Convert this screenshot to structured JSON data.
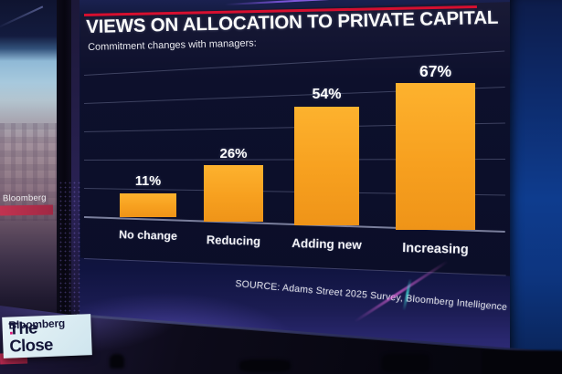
{
  "chart_data": {
    "type": "bar",
    "title": "VIEWS ON ALLOCATION TO PRIVATE CAPITAL",
    "subtitle": "Commitment changes with managers:",
    "categories": [
      "No change",
      "Reducing",
      "Adding new",
      "Increasing"
    ],
    "values": [
      11,
      26,
      54,
      67
    ],
    "value_labels": [
      "11%",
      "26%",
      "54%",
      "67%"
    ],
    "source": "SOURCE: Adams Street 2025 Survey, Bloomberg Intelligence",
    "ylim": [
      0,
      75
    ],
    "gridlines": true,
    "gridline_count": 5,
    "legend": "none",
    "bar_color": "#F7A01F",
    "bar_color_top": "#FDB22E",
    "bar_color_bottom": "#EF9418",
    "accent_line_color": "#D60F2F",
    "panel_background": "#0C102E",
    "text_color": "#FFFFFF"
  },
  "studio": {
    "left_monitor_watermark": "Bloomberg",
    "bug": {
      "line1": "Bloomberg",
      "line2": "The Close",
      "dot": ".",
      "dot_color": "#E0187A"
    }
  }
}
